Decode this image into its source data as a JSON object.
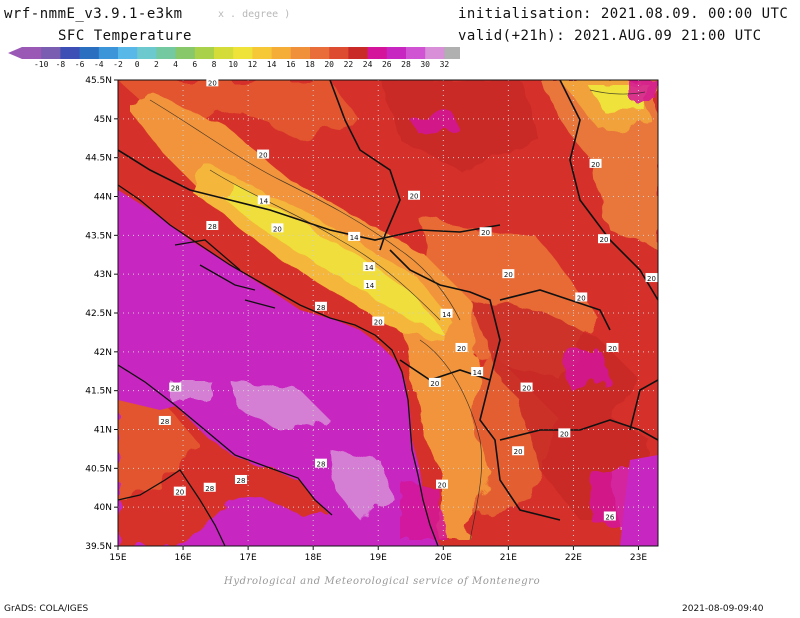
{
  "header": {
    "model": "wrf-nmmE_v3.9.1-e3km",
    "units": "x . degree )",
    "field": "SFC Temperature",
    "init": "initialisation: 2021.08.09. 00:00 UTC",
    "valid": "valid(+21h): 2021.AUG.09 21:00 UTC"
  },
  "colorbar": {
    "labels": [
      "-10",
      "-8",
      "-6",
      "-4",
      "-2",
      "0",
      "2",
      "4",
      "6",
      "8",
      "10",
      "12",
      "14",
      "16",
      "18",
      "20",
      "22",
      "24",
      "26",
      "28",
      "30",
      "32"
    ],
    "colors": [
      "#9b59b6",
      "#7a5cb0",
      "#3d4fb4",
      "#2a6fc0",
      "#3b95d8",
      "#58b8e8",
      "#6ccacf",
      "#74c9a0",
      "#88c86a",
      "#a9d24a",
      "#d4dc3a",
      "#efe33a",
      "#f6c838",
      "#f5ad38",
      "#f1903a",
      "#e86d3a",
      "#dd4c30",
      "#c92a28",
      "#d4149a",
      "#c826c0",
      "#d053d3",
      "#d88fd8",
      "#b0b0b0"
    ]
  },
  "map": {
    "lat_labels": [
      "45.5N",
      "45N",
      "44.5N",
      "44N",
      "43.5N",
      "43N",
      "42.5N",
      "42N",
      "41.5N",
      "41N",
      "40.5N",
      "40N",
      "39.5N"
    ],
    "lon_labels": [
      "15E",
      "16E",
      "17E",
      "18E",
      "19E",
      "20E",
      "21E",
      "22E",
      "23E"
    ],
    "contour_labels": [
      {
        "text": "20",
        "lon": 16.45,
        "lat": 45.47
      },
      {
        "text": "20",
        "lon": 17.23,
        "lat": 44.54
      },
      {
        "text": "14",
        "lon": 17.24,
        "lat": 43.95
      },
      {
        "text": "20",
        "lon": 17.45,
        "lat": 43.59
      },
      {
        "text": "28",
        "lon": 16.45,
        "lat": 43.62
      },
      {
        "text": "20",
        "lon": 19.55,
        "lat": 44.01
      },
      {
        "text": "14",
        "lon": 18.63,
        "lat": 43.48
      },
      {
        "text": "14",
        "lon": 18.86,
        "lat": 43.09
      },
      {
        "text": "14",
        "lon": 18.87,
        "lat": 42.86
      },
      {
        "text": "20",
        "lon": 20.65,
        "lat": 43.54
      },
      {
        "text": "20",
        "lon": 21.0,
        "lat": 43.0
      },
      {
        "text": "20",
        "lon": 22.34,
        "lat": 44.42
      },
      {
        "text": "20",
        "lon": 22.47,
        "lat": 43.45
      },
      {
        "text": "20",
        "lon": 23.2,
        "lat": 42.95
      },
      {
        "text": "20",
        "lon": 22.12,
        "lat": 42.7
      },
      {
        "text": "28",
        "lon": 18.12,
        "lat": 42.58
      },
      {
        "text": "20",
        "lon": 19.0,
        "lat": 42.39
      },
      {
        "text": "14",
        "lon": 20.05,
        "lat": 42.49
      },
      {
        "text": "20",
        "lon": 20.28,
        "lat": 42.05
      },
      {
        "text": "14",
        "lon": 20.52,
        "lat": 41.74
      },
      {
        "text": "20",
        "lon": 19.87,
        "lat": 41.6
      },
      {
        "text": "20",
        "lon": 21.28,
        "lat": 41.54
      },
      {
        "text": "20",
        "lon": 22.6,
        "lat": 42.05
      },
      {
        "text": "28",
        "lon": 15.88,
        "lat": 41.54
      },
      {
        "text": "28",
        "lon": 15.72,
        "lat": 41.11
      },
      {
        "text": "20",
        "lon": 21.86,
        "lat": 40.95
      },
      {
        "text": "20",
        "lon": 21.15,
        "lat": 40.72
      },
      {
        "text": "28",
        "lon": 18.12,
        "lat": 40.56
      },
      {
        "text": "28",
        "lon": 16.89,
        "lat": 40.35
      },
      {
        "text": "28",
        "lon": 16.41,
        "lat": 40.25
      },
      {
        "text": "20",
        "lon": 15.95,
        "lat": 40.2
      },
      {
        "text": "20",
        "lon": 19.98,
        "lat": 40.29
      },
      {
        "text": "26",
        "lon": 22.56,
        "lat": 39.88
      }
    ]
  },
  "credit": "Hydrological and Meteorological service of Montenegro",
  "footer": {
    "left": "GrADS: COLA/IGES",
    "right": "2021-08-09-09:40"
  }
}
